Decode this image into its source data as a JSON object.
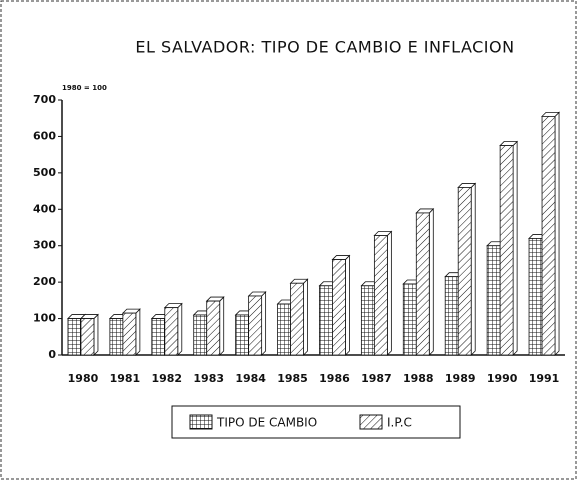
{
  "chart_data": {
    "type": "bar",
    "title": "EL SALVADOR: TIPO DE CAMBIO E INFLACION",
    "subtitle": "1980 = 100",
    "categories": [
      "1980",
      "1981",
      "1982",
      "1983",
      "1984",
      "1985",
      "1986",
      "1987",
      "1988",
      "1989",
      "1990",
      "1991"
    ],
    "series": [
      {
        "name": "TIPO DE CAMBIO",
        "color": "#111111",
        "values": [
          100,
          100,
          100,
          110,
          110,
          140,
          190,
          190,
          195,
          215,
          300,
          320
        ]
      },
      {
        "name": "I.P.C",
        "color": "#111111",
        "values": [
          100,
          115,
          130,
          148,
          162,
          197,
          262,
          328,
          390,
          460,
          575,
          655
        ]
      }
    ],
    "ylim": [
      0,
      700
    ],
    "yticks": [
      0,
      100,
      200,
      300,
      400,
      500,
      600,
      700
    ]
  }
}
